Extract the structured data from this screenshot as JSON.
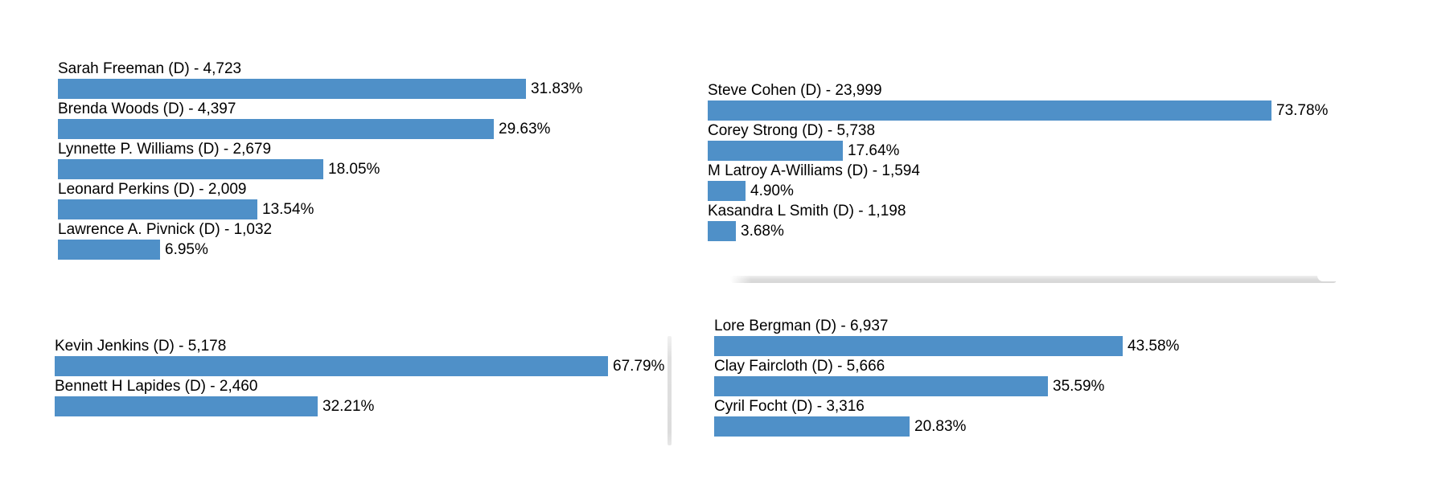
{
  "theme": {
    "background_color": "#ffffff",
    "bar_color": "#4f90c8",
    "text_color": "#000000",
    "shadow_color": "#dbdbdb"
  },
  "chart_data": [
    {
      "type": "bar",
      "orientation": "horizontal",
      "title": "",
      "xlim": [
        0,
        35
      ],
      "grid": false,
      "legend": "none",
      "bars": [
        {
          "label": "Sarah Freeman (D) - 4,723",
          "candidate": "Sarah Freeman",
          "party": "D",
          "votes": 4723,
          "pct": 31.83,
          "pct_label": "31.83%"
        },
        {
          "label": "Brenda Woods (D) - 4,397",
          "candidate": "Brenda Woods",
          "party": "D",
          "votes": 4397,
          "pct": 29.63,
          "pct_label": "29.63%"
        },
        {
          "label": "Lynnette P. Williams (D) - 2,679",
          "candidate": "Lynnette P. Williams",
          "party": "D",
          "votes": 2679,
          "pct": 18.05,
          "pct_label": "18.05%"
        },
        {
          "label": "Leonard Perkins (D) - 2,009",
          "candidate": "Leonard Perkins",
          "party": "D",
          "votes": 2009,
          "pct": 13.54,
          "pct_label": "13.54%"
        },
        {
          "label": "Lawrence A. Pivnick (D) - 1,032",
          "candidate": "Lawrence A. Pivnick",
          "party": "D",
          "votes": 1032,
          "pct": 6.95,
          "pct_label": "6.95%"
        }
      ]
    },
    {
      "type": "bar",
      "orientation": "horizontal",
      "title": "",
      "xlim": [
        0,
        80
      ],
      "grid": false,
      "legend": "none",
      "bars": [
        {
          "label": "Steve Cohen (D) - 23,999",
          "candidate": "Steve Cohen",
          "party": "D",
          "votes": 23999,
          "pct": 73.78,
          "pct_label": "73.78%"
        },
        {
          "label": "Corey Strong (D) - 5,738",
          "candidate": "Corey Strong",
          "party": "D",
          "votes": 5738,
          "pct": 17.64,
          "pct_label": "17.64%"
        },
        {
          "label": "M Latroy A-Williams (D) - 1,594",
          "candidate": "M Latroy A-Williams",
          "party": "D",
          "votes": 1594,
          "pct": 4.9,
          "pct_label": "4.90%"
        },
        {
          "label": "Kasandra L Smith (D) - 1,198",
          "candidate": "Kasandra L Smith",
          "party": "D",
          "votes": 1198,
          "pct": 3.68,
          "pct_label": "3.68%"
        }
      ]
    },
    {
      "type": "bar",
      "orientation": "horizontal",
      "title": "",
      "xlim": [
        0,
        70
      ],
      "grid": false,
      "legend": "none",
      "bars": [
        {
          "label": "Kevin Jenkins (D) - 5,178",
          "candidate": "Kevin Jenkins",
          "party": "D",
          "votes": 5178,
          "pct": 67.79,
          "pct_label": "67.79%"
        },
        {
          "label": "Bennett H Lapides (D) - 2,460",
          "candidate": "Bennett H Lapides",
          "party": "D",
          "votes": 2460,
          "pct": 32.21,
          "pct_label": "32.21%"
        }
      ]
    },
    {
      "type": "bar",
      "orientation": "horizontal",
      "title": "",
      "xlim": [
        0,
        45
      ],
      "grid": false,
      "legend": "none",
      "bars": [
        {
          "label": "Lore Bergman (D) - 6,937",
          "candidate": "Lore Bergman",
          "party": "D",
          "votes": 6937,
          "pct": 43.58,
          "pct_label": "43.58%"
        },
        {
          "label": "Clay Faircloth (D) - 5,666",
          "candidate": "Clay Faircloth",
          "party": "D",
          "votes": 5666,
          "pct": 35.59,
          "pct_label": "35.59%"
        },
        {
          "label": "Cyril Focht (D) - 3,316",
          "candidate": "Cyril Focht",
          "party": "D",
          "votes": 3316,
          "pct": 20.83,
          "pct_label": "20.83%"
        }
      ]
    }
  ]
}
